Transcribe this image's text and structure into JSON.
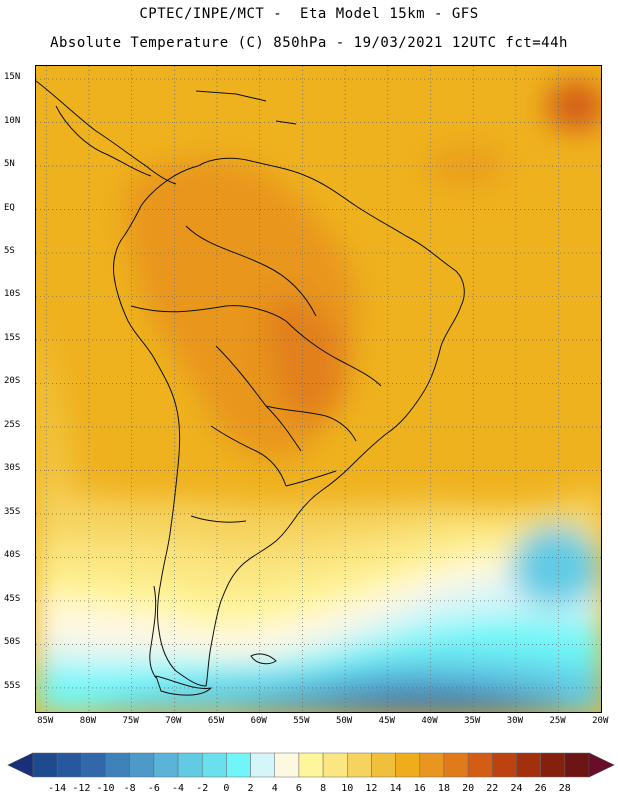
{
  "header": {
    "line1": "CPTEC/INPE/MCT -  Eta Model 15km - GFS",
    "line2": "Absolute Temperature (C) 850hPa - 19/03/2021 12UTC fct=44h"
  },
  "map": {
    "region": "South America",
    "lat_labels": [
      "15N",
      "10N",
      "5N",
      "EQ",
      "5S",
      "10S",
      "15S",
      "20S",
      "25S",
      "30S",
      "35S",
      "40S",
      "45S",
      "50S",
      "55S"
    ],
    "lon_labels": [
      "85W",
      "80W",
      "75W",
      "70W",
      "65W",
      "60W",
      "55W",
      "50W",
      "45W",
      "40W",
      "35W",
      "30W",
      "25W",
      "20W"
    ],
    "lat_values": [
      15,
      10,
      5,
      0,
      -5,
      -10,
      -15,
      -20,
      -25,
      -30,
      -35,
      -40,
      -45,
      -50,
      -55
    ],
    "lon_values": [
      -85,
      -80,
      -75,
      -70,
      -65,
      -60,
      -55,
      -50,
      -45,
      -40,
      -35,
      -30,
      -25,
      -20
    ],
    "lat_range": [
      -58,
      16.5
    ],
    "lon_range": [
      -86.2,
      -19.8
    ]
  },
  "legend": {
    "tick_labels": [
      "-14",
      "-12",
      "-10",
      "-8",
      "-6",
      "-4",
      "-2",
      "0",
      "2",
      "4",
      "6",
      "8",
      "10",
      "12",
      "14",
      "16",
      "18",
      "20",
      "22",
      "24",
      "26",
      "28"
    ],
    "colors": [
      "#1e4a8e",
      "#27589e",
      "#3068aa",
      "#3f82ba",
      "#4d9ac8",
      "#5ab4d8",
      "#62cbe4",
      "#68e0ee",
      "#70f6f8",
      "#d4f5f9",
      "#fff8e1",
      "#fff59a",
      "#fbe682",
      "#f6d35e",
      "#f0bf3b",
      "#efad1c",
      "#e8961f",
      "#e07a1a",
      "#d35d14",
      "#bd4210",
      "#a2300d",
      "#84200d",
      "#6d1515"
    ],
    "left_arrow_color": "#1a2f7a",
    "right_arrow_color": "#6a0d2b"
  }
}
